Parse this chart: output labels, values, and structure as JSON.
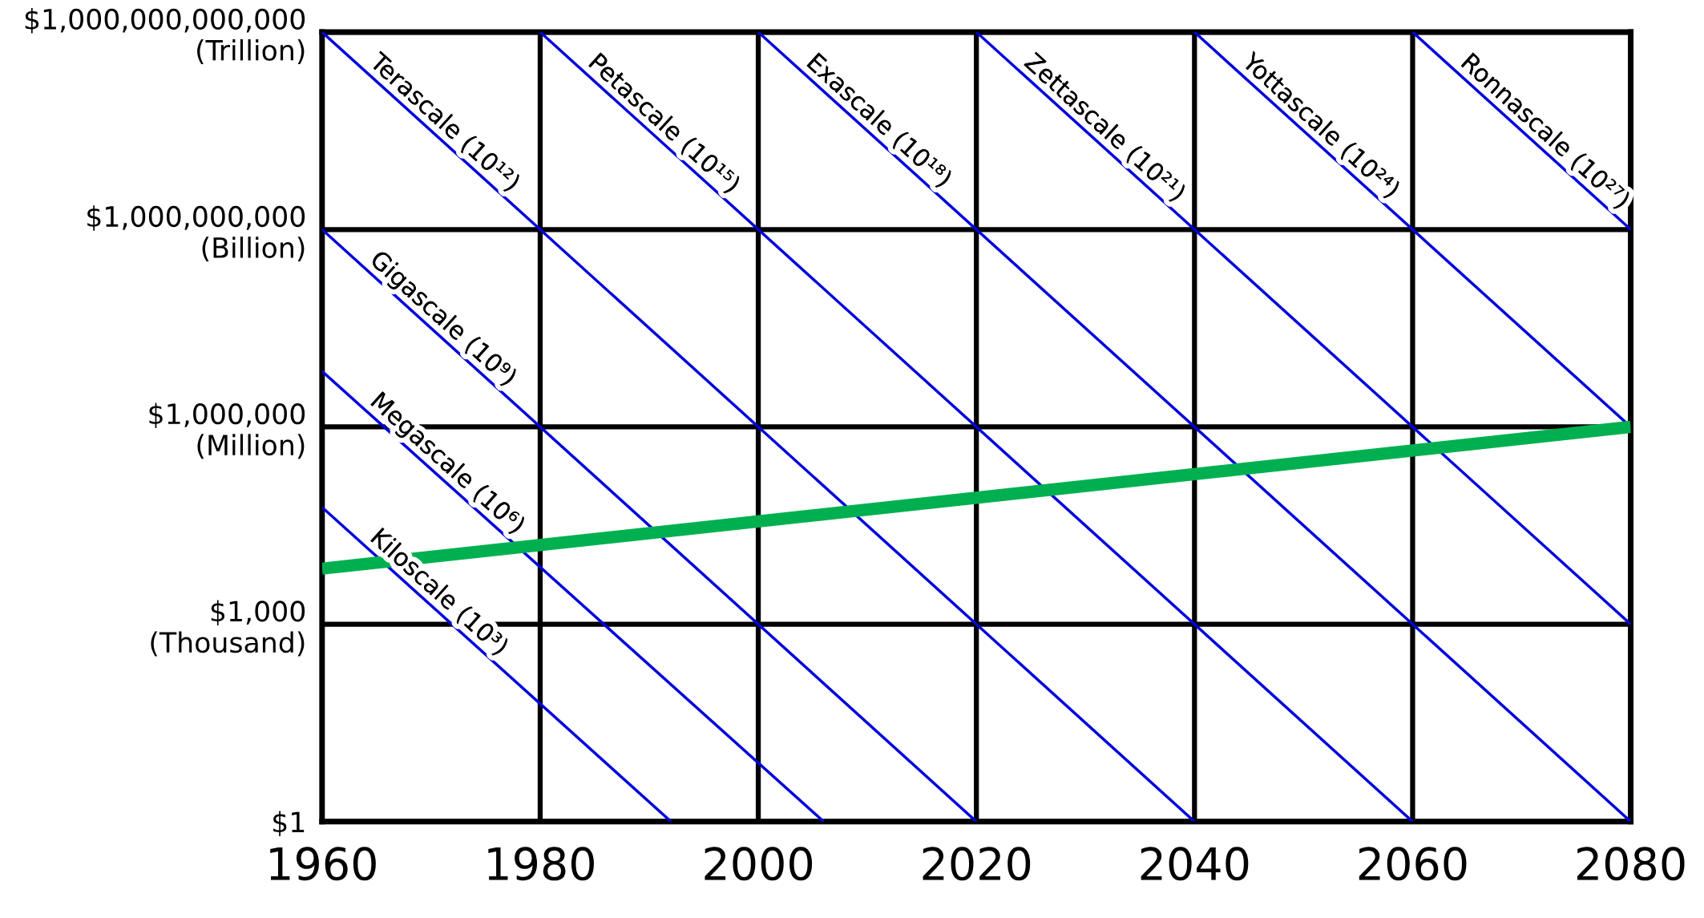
{
  "chart_data": {
    "type": "line",
    "log": "y",
    "grid": true,
    "legend": false,
    "marker": "none",
    "line_style": "solid",
    "xlim": [
      1960,
      2080
    ],
    "xticks": [
      1960,
      1980,
      2000,
      2020,
      2040,
      2060,
      2080
    ],
    "ylim": [
      1,
      1000000000000
    ],
    "yticks": [
      {
        "value": 1,
        "label": "$1"
      },
      {
        "value": 1000,
        "label": "$1,000\n(Thousand)"
      },
      {
        "value": 1000000,
        "label": "$1,000,000\n(Million)"
      },
      {
        "value": 1000000000,
        "label": "$1,000,000,000\n(Billion)"
      },
      {
        "value": 1000000000000,
        "label": "$1,000,000,000,000\n(Trillion)"
      }
    ],
    "series": [
      {
        "name": "Kiloscale (10³)",
        "color": "#0000dd",
        "x": [
          1960,
          1992
        ],
        "values": [
          60000,
          1
        ]
      },
      {
        "name": "Megascale (10⁶)",
        "color": "#0000dd",
        "x": [
          1960,
          2006
        ],
        "values": [
          7000000,
          1
        ]
      },
      {
        "name": "Gigascale (10⁹)",
        "color": "#0000dd",
        "x": [
          1960,
          2020
        ],
        "values": [
          1000000000,
          1
        ]
      },
      {
        "name": "Terascale (10¹²)",
        "color": "#0000dd",
        "x": [
          1960,
          2040
        ],
        "values": [
          1000000000000,
          1
        ]
      },
      {
        "name": "Petascale (10¹⁵)",
        "color": "#0000dd",
        "x": [
          1980,
          2060
        ],
        "values": [
          1000000000000,
          1
        ]
      },
      {
        "name": "Exascale (10¹⁸)",
        "color": "#0000dd",
        "x": [
          2000,
          2080
        ],
        "values": [
          1000000000000,
          1
        ]
      },
      {
        "name": "Zettascale (10²¹)",
        "color": "#0000dd",
        "x": [
          2020,
          2080
        ],
        "values": [
          1000000000000,
          1000
        ]
      },
      {
        "name": "Yottascale (10²⁴)",
        "color": "#0000dd",
        "x": [
          2040,
          2080
        ],
        "values": [
          1000000000000,
          1000000
        ]
      },
      {
        "name": "Ronnascale (10²⁷)",
        "color": "#0000dd",
        "x": [
          2060,
          2080
        ],
        "values": [
          1000000000000,
          1000000000
        ]
      },
      {
        "color": "#00b050",
        "x": [
          1960,
          2080
        ],
        "values": [
          7000,
          1000000
        ]
      }
    ]
  }
}
